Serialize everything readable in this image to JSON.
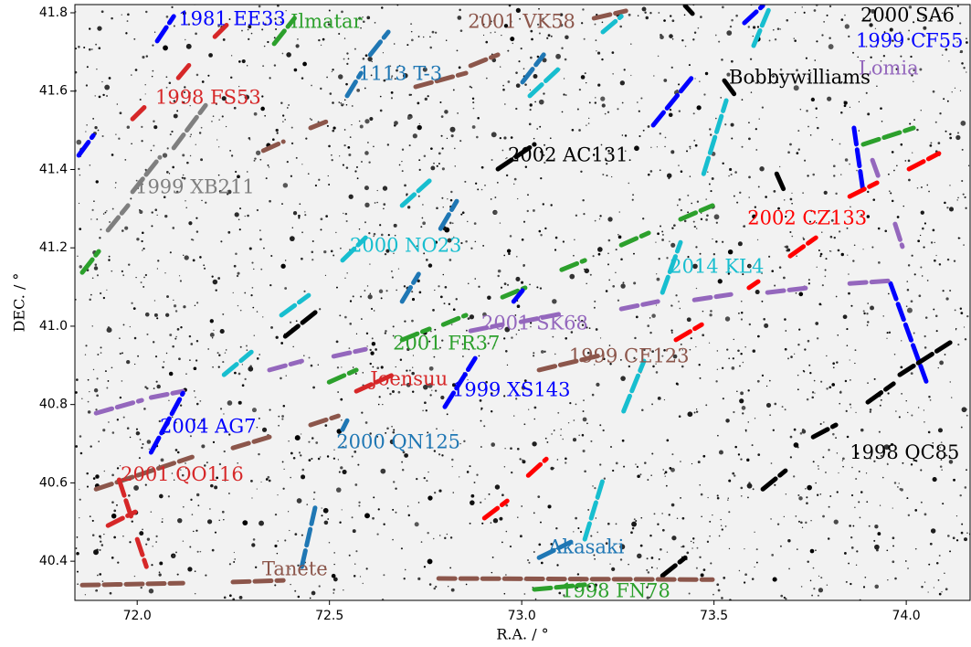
{
  "chart_data": {
    "type": "line",
    "xlabel": "R.A. / °",
    "ylabel": "DEC. / °",
    "xlim": [
      71.838,
      74.166
    ],
    "ylim": [
      40.3,
      41.821
    ],
    "xticks": [
      {
        "value": 72,
        "label": "72.0"
      },
      {
        "value": 72.5,
        "label": "72.5"
      },
      {
        "value": 73,
        "label": "73.0"
      },
      {
        "value": 73.5,
        "label": "73.5"
      },
      {
        "value": 74,
        "label": "74.0"
      }
    ],
    "yticks": [
      40.4,
      40.6,
      40.8,
      {
        "value": 41,
        "label": "41.0"
      },
      41.2,
      41.4,
      41.6,
      41.8
    ],
    "series": [
      {
        "name": "1981 EE33",
        "color": "#0000ff",
        "label_at": [
          72.107,
          41.781
        ],
        "x": [
          72.052,
          72.095,
          null,
          71.848,
          71.886
        ],
        "values": [
          41.728,
          41.791,
          null,
          41.436,
          41.487
        ]
      },
      {
        "name": "Ilmatar",
        "color": "#2ca02c",
        "label_at": [
          72.399,
          41.774
        ],
        "x": [
          72.356,
          72.409,
          null,
          71.857,
          71.9,
          null,
          73.259,
          73.33,
          null,
          73.413,
          73.496,
          null,
          73.888,
          74.019
        ],
        "values": [
          41.721,
          41.786,
          null,
          41.137,
          41.191,
          null,
          41.207,
          41.238,
          null,
          41.273,
          41.308,
          null,
          41.464,
          41.506
        ]
      },
      {
        "name": "2001 VK58",
        "color": "#8c564b",
        "label_at": [
          72.86,
          41.774
        ],
        "x": [
          72.724,
          72.855,
          null,
          72.867,
          72.938,
          null,
          73.188,
          73.271,
          null,
          72.328,
          72.38,
          null,
          72.451,
          72.499
        ],
        "values": [
          41.611,
          41.646,
          null,
          41.665,
          41.693,
          null,
          41.786,
          41.805,
          null,
          41.448,
          41.471,
          null,
          41.506,
          41.525
        ]
      },
      {
        "name": "2000 SA6",
        "color": "#000000",
        "label_at": [
          73.881,
          41.791
        ],
        "x": [
          73.425,
          73.444
        ],
        "values": [
          41.818,
          41.798
        ]
      },
      {
        "name": "1999 CF55",
        "color": "#0000ff",
        "label_at": [
          73.869,
          41.725
        ],
        "x": [
          73.864,
          73.888,
          null,
          73.959,
          74.054,
          null,
          73.342,
          73.442,
          null,
          73.579,
          73.627
        ],
        "values": [
          41.506,
          41.343,
          null,
          41.109,
          40.853,
          null,
          41.513,
          41.634,
          null,
          41.774,
          41.818
        ]
      },
      {
        "name": "Lomia",
        "color": "#9467bd",
        "label_at": [
          73.876,
          41.655
        ],
        "x": [
          73.912,
          73.929,
          null,
          73.971,
          73.99
        ],
        "values": [
          41.424,
          41.378,
          null,
          41.261,
          41.203
        ]
      },
      {
        "name": "1113 T-3",
        "color": "#1f77b4",
        "label_at": [
          72.575,
          41.641
        ],
        "x": [
          72.546,
          72.582,
          null,
          72.606,
          72.653,
          null,
          72.689,
          72.732,
          null,
          72.789,
          72.831,
          null,
          73.002,
          73.057
        ],
        "values": [
          41.588,
          41.646,
          null,
          41.693,
          41.751,
          null,
          41.063,
          41.133,
          null,
          41.249,
          41.319,
          null,
          41.623,
          41.693
        ]
      },
      {
        "name": "Bobbywilliams",
        "color": "#000000",
        "label_at": [
          73.539,
          41.632
        ],
        "x": [
          73.527,
          73.556
        ],
        "values": [
          41.627,
          41.588
        ]
      },
      {
        "name": "1998 FS53",
        "color": "#d62728",
        "label_at": [
          72.047,
          41.581
        ],
        "x": [
          71.988,
          72.024,
          null,
          72.107,
          72.143,
          null,
          72.202,
          72.238
        ],
        "values": [
          41.529,
          41.564,
          null,
          41.634,
          41.676,
          null,
          41.739,
          41.774
        ]
      },
      {
        "name": "2002 AC131",
        "color": "#000000",
        "label_at": [
          72.964,
          41.434
        ],
        "x": [
          72.938,
          73.033,
          null,
          73.663,
          73.682
        ],
        "values": [
          41.401,
          41.464,
          null,
          41.389,
          41.347
        ]
      },
      {
        "name": "1999 XB211",
        "color": "#7f7f7f",
        "label_at": [
          71.995,
          41.352
        ],
        "x": [
          71.924,
          71.976,
          null,
          71.988,
          72.059,
          null,
          72.095,
          72.178
        ],
        "values": [
          41.245,
          41.308,
          null,
          41.343,
          41.431,
          null,
          41.455,
          41.564
        ]
      },
      {
        "name": "2002 CZ133",
        "color": "#ff0000",
        "label_at": [
          73.587,
          41.273
        ],
        "x": [
          73.698,
          73.765,
          null,
          73.853,
          73.924,
          null,
          74.007,
          74.085,
          null,
          73.591,
          73.615,
          null,
          73.401,
          73.468,
          null,
          72.903,
          72.962,
          null,
          73.017,
          73.064
        ],
        "values": [
          41.179,
          41.226,
          null,
          41.331,
          41.366,
          null,
          41.401,
          41.441,
          null,
          41.098,
          41.114,
          null,
          40.965,
          41.004,
          null,
          40.51,
          40.554,
          null,
          40.619,
          40.661
        ]
      },
      {
        "name": "2000 NO23",
        "color": "#17becf",
        "label_at": [
          72.553,
          41.203
        ],
        "x": [
          72.534,
          72.594,
          null,
          72.689,
          72.76,
          null,
          72.375,
          72.446,
          null,
          72.226,
          72.297,
          null,
          73.021,
          73.097,
          null,
          73.211,
          73.259
        ],
        "values": [
          41.168,
          41.226,
          null,
          41.308,
          41.371,
          null,
          41.028,
          41.079,
          null,
          40.876,
          40.934,
          null,
          41.588,
          41.658,
          null,
          41.751,
          41.791
        ]
      },
      {
        "name": "2014 KL4",
        "color": "#17becf",
        "label_at": [
          73.385,
          41.149
        ],
        "x": [
          73.366,
          73.413,
          null,
          73.473,
          73.532,
          null,
          73.603,
          73.643,
          null,
          73.265,
          73.318,
          null,
          73.164,
          73.211
        ],
        "values": [
          41.086,
          41.214,
          null,
          41.389,
          41.576,
          null,
          41.716,
          41.809,
          null,
          40.783,
          40.911,
          null,
          40.456,
          40.608
        ]
      },
      {
        "name": "2001 SK68",
        "color": "#9467bd",
        "label_at": [
          72.895,
          41.004
        ],
        "x": [
          71.893,
          72.012,
          null,
          72.036,
          72.119,
          null,
          72.344,
          72.428,
          null,
          72.511,
          72.594,
          null,
          72.867,
          72.95,
          null,
          72.998,
          73.104,
          null,
          73.259,
          73.354,
          null,
          73.449,
          73.544,
          null,
          73.639,
          73.746,
          null,
          73.853,
          73.959
        ],
        "values": [
          40.778,
          40.811,
          null,
          40.818,
          40.834,
          null,
          40.888,
          40.911,
          null,
          40.923,
          40.941,
          null,
          40.988,
          41.004,
          null,
          41.011,
          41.032,
          null,
          41.044,
          41.063,
          null,
          41.067,
          41.081,
          null,
          41.086,
          41.098,
          null,
          41.109,
          41.116
        ]
      },
      {
        "name": "2001 FR37",
        "color": "#2ca02c",
        "label_at": [
          72.665,
          40.953
        ],
        "x": [
          72.499,
          72.57,
          null,
          72.689,
          72.76,
          null,
          72.796,
          72.855,
          null,
          72.95,
          73.009,
          null,
          73.104,
          73.164
        ],
        "values": [
          40.857,
          40.888,
          null,
          40.965,
          40.993,
          null,
          41.004,
          41.028,
          null,
          41.074,
          41.098,
          null,
          41.144,
          41.168
        ]
      },
      {
        "name": "1999 CE123",
        "color": "#8c564b",
        "label_at": [
          73.123,
          40.92
        ],
        "x": [
          73.045,
          73.211,
          null,
          71.893,
          72.143,
          null,
          72.249,
          72.344,
          null,
          72.451,
          72.523
        ],
        "values": [
          40.888,
          40.927,
          null,
          40.584,
          40.666,
          null,
          40.689,
          40.717,
          null,
          40.748,
          40.771
        ]
      },
      {
        "name": "Joensuu",
        "color": "#d62728",
        "label_at": [
          72.606,
          40.862
        ],
        "x": [
          72.57,
          72.665
        ],
        "values": [
          40.834,
          40.876
        ]
      },
      {
        "name": "1999 XS143",
        "color": "#0000ff",
        "label_at": [
          72.819,
          40.834
        ],
        "x": [
          72.8,
          72.879,
          null,
          72.979,
          73.002
        ],
        "values": [
          40.794,
          40.918,
          null,
          41.063,
          41.091
        ]
      },
      {
        "name": "2004 AG7",
        "color": "#0000ff",
        "label_at": [
          72.059,
          40.741
        ],
        "x": [
          72.036,
          72.119
        ],
        "values": [
          40.678,
          40.829
        ]
      },
      {
        "name": "2000 QN125",
        "color": "#1f77b4",
        "label_at": [
          72.518,
          40.701
        ],
        "x": [
          72.428,
          72.463,
          null,
          72.534,
          72.546
        ],
        "values": [
          40.386,
          40.538,
          null,
          40.736,
          40.759
        ]
      },
      {
        "name": "1998 QC85",
        "color": "#000000",
        "label_at": [
          73.853,
          40.675
        ],
        "x": [
          72.385,
          72.463,
          null,
          73.627,
          73.686,
          null,
          73.758,
          73.817,
          null,
          73.9,
          73.967,
          null,
          73.983,
          74.114,
          null,
          73.366,
          73.425
        ],
        "values": [
          40.974,
          41.035,
          null,
          40.584,
          40.631,
          null,
          40.717,
          40.748,
          null,
          40.806,
          40.853,
          null,
          40.876,
          40.958,
          null,
          40.363,
          40.409
        ]
      },
      {
        "name": "2001 QO116",
        "color": "#d62728",
        "label_at": [
          71.957,
          40.619
        ],
        "x": [
          71.953,
          71.988,
          null,
          72.0,
          72.024,
          null,
          71.924,
          71.995
        ],
        "values": [
          40.608,
          40.503,
          null,
          40.456,
          40.386,
          null,
          40.491,
          40.526
        ]
      },
      {
        "name": "Akasaki",
        "color": "#1f77b4",
        "label_at": [
          73.069,
          40.433
        ],
        "x": [
          73.045,
          73.128
        ],
        "values": [
          40.409,
          40.449
        ]
      },
      {
        "name": "Tanete",
        "color": "#8c564b",
        "label_at": [
          72.325,
          40.377
        ],
        "x": [
          71.857,
          72.119,
          null,
          72.249,
          72.38,
          null,
          72.784,
          73.496
        ],
        "values": [
          40.339,
          40.344,
          null,
          40.347,
          40.351,
          null,
          40.356,
          40.353
        ]
      },
      {
        "name": "1998 FN78",
        "color": "#2ca02c",
        "label_at": [
          73.102,
          40.321
        ],
        "x": [
          73.033,
          73.164
        ],
        "values": [
          40.328,
          40.34
        ]
      }
    ]
  }
}
